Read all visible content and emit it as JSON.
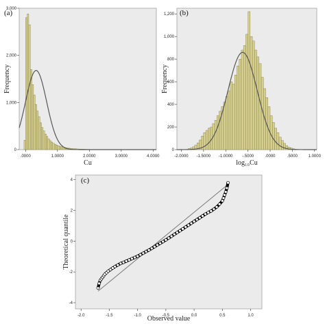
{
  "colors": {
    "plot_bg": "#ebebeb",
    "bar_fill": "#d6cf8e",
    "bar_stroke": "#6e6a3c",
    "curve": "#555555",
    "qq_points": "#000000",
    "qq_line": "#777777"
  },
  "chart_data": [
    {
      "type": "bar",
      "panel": "(a)",
      "xlabel": "Cu",
      "ylabel": "Frequency",
      "xlim": [
        -0.2,
        4.1
      ],
      "ylim": [
        0,
        3000
      ],
      "xticks": [
        0.0,
        1.0,
        2.0,
        3.0,
        4.0
      ],
      "xtick_labels": [
        ".0000",
        "1.0000",
        "2.0000",
        "3.0000",
        "4.0000"
      ],
      "yticks": [
        0,
        1000,
        2000,
        3000
      ],
      "ytick_labels": [
        "0",
        "1,000",
        "2,000",
        "3,000"
      ],
      "bin_start": -0.05,
      "bin_width": 0.05,
      "values": [
        200,
        2800,
        2880,
        2650,
        1700,
        1380,
        1160,
        960,
        820,
        700,
        570,
        470,
        400,
        330,
        280,
        230,
        190,
        160,
        135,
        115,
        100,
        85,
        72,
        62,
        54,
        46,
        40,
        34,
        30,
        26,
        22,
        19,
        17,
        15,
        13,
        11,
        10,
        9,
        8,
        7,
        6,
        5,
        5,
        4,
        4,
        3,
        3,
        3,
        2,
        2,
        2,
        2,
        2,
        1,
        1,
        1,
        1,
        1,
        1,
        1
      ],
      "normal_curve": {
        "mean": 0.33,
        "sd": 0.33,
        "peak": 1680
      },
      "grid": false
    },
    {
      "type": "bar",
      "panel": "(b)",
      "xlabel": "log₁₀Cu",
      "ylabel": "Frequency",
      "xlim": [
        -2.1,
        1.05
      ],
      "ylim": [
        0,
        1250
      ],
      "xticks": [
        -2.0,
        -1.5,
        -1.0,
        -0.5,
        0.0,
        0.5,
        1.0
      ],
      "xtick_labels": [
        "-2.0000",
        "-1.5000",
        "-1.0000",
        "-.5000",
        ".0000",
        ".5000",
        "1.0000"
      ],
      "yticks": [
        0,
        200,
        400,
        600,
        800,
        1000,
        1200
      ],
      "ytick_labels": [
        "0",
        "200",
        "400",
        "600",
        "800",
        "1,000",
        "1,200"
      ],
      "bin_start": -1.85,
      "bin_width": 0.05,
      "values": [
        10,
        15,
        25,
        40,
        60,
        85,
        120,
        150,
        170,
        190,
        200,
        230,
        260,
        300,
        340,
        380,
        420,
        470,
        520,
        600,
        580,
        660,
        740,
        800,
        880,
        920,
        1020,
        1220,
        1000,
        960,
        880,
        820,
        760,
        640,
        540,
        460,
        380,
        300,
        240,
        190,
        150,
        110,
        80,
        55,
        35,
        22,
        14,
        8,
        4,
        2
      ],
      "normal_curve": {
        "mean": -0.62,
        "sd": 0.33,
        "peak": 860
      },
      "grid": false
    },
    {
      "type": "scatter",
      "panel": "(c)",
      "xlabel": "Observed value",
      "ylabel": "Theoretical quantile",
      "xlim": [
        -2.1,
        1.2
      ],
      "ylim": [
        -4.4,
        4.3
      ],
      "xticks": [
        -2.0,
        -1.5,
        -1.0,
        -0.5,
        0.0,
        0.5,
        1.0
      ],
      "xtick_labels": [
        "-2.0",
        "-1.5",
        "-1.0",
        "-0.5",
        "0.0",
        "0.5",
        "1.0"
      ],
      "yticks": [
        -4,
        -2,
        0,
        2,
        4
      ],
      "ytick_labels": [
        "-4",
        "-2",
        "0",
        "2",
        "4"
      ],
      "reference_line": {
        "x": [
          -1.7,
          0.62
        ],
        "y": [
          -3.25,
          3.75
        ]
      },
      "points": {
        "x": [
          -1.7,
          -1.68,
          -1.66,
          -1.64,
          -1.62,
          -1.6,
          -1.58,
          -1.55,
          -1.52,
          -1.48,
          -1.44,
          -1.4,
          -1.35,
          -1.3,
          -1.25,
          -1.2,
          -1.15,
          -1.1,
          -1.05,
          -1.0,
          -0.95,
          -0.9,
          -0.85,
          -0.8,
          -0.75,
          -0.7,
          -0.65,
          -0.6,
          -0.55,
          -0.5,
          -0.45,
          -0.4,
          -0.35,
          -0.3,
          -0.25,
          -0.2,
          -0.15,
          -0.1,
          -0.05,
          0.0,
          0.05,
          0.1,
          0.15,
          0.2,
          0.25,
          0.3,
          0.35,
          0.4,
          0.45,
          0.5,
          0.52,
          0.54,
          0.56,
          0.58,
          0.6
        ],
        "y": [
          -3.05,
          -2.75,
          -2.55,
          -2.45,
          -2.35,
          -2.25,
          -2.15,
          -2.05,
          -1.95,
          -1.85,
          -1.75,
          -1.65,
          -1.55,
          -1.45,
          -1.38,
          -1.3,
          -1.22,
          -1.14,
          -1.06,
          -0.98,
          -0.88,
          -0.78,
          -0.68,
          -0.58,
          -0.47,
          -0.36,
          -0.25,
          -0.14,
          -0.03,
          0.08,
          0.2,
          0.32,
          0.44,
          0.56,
          0.68,
          0.8,
          0.92,
          1.04,
          1.16,
          1.28,
          1.4,
          1.52,
          1.64,
          1.76,
          1.86,
          1.96,
          2.08,
          2.22,
          2.4,
          2.62,
          2.8,
          3.0,
          3.2,
          3.45,
          3.8
        ]
      },
      "grid": false
    }
  ]
}
